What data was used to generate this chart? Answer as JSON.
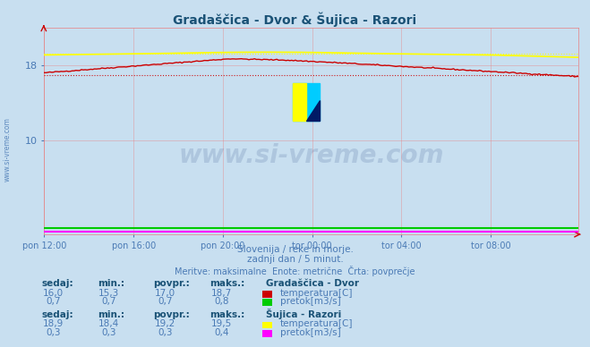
{
  "title": "Gradaščica - Dvor & Šujica - Razori",
  "title_color": "#1a5276",
  "bg_color": "#c8dff0",
  "plot_bg_color": "#c8dff0",
  "xlabel_texts": [
    "pon 12:00",
    "pon 16:00",
    "pon 20:00",
    "tor 00:00",
    "tor 04:00",
    "tor 08:00"
  ],
  "ylim_min": 0,
  "ylim_max": 22,
  "grid_color": "#e88080",
  "axis_label_color": "#4a7ab5",
  "subtitle1": "Slovenija / reke in morje.",
  "subtitle2": "zadnji dan / 5 minut.",
  "subtitle3": "Meritve: maksimalne  Enote: metrične  Črta: povprečje",
  "subtitle_color": "#4a7ab5",
  "watermark": "www.si-vreme.com",
  "watermark_color": "#1a3a7c",
  "watermark_alpha": 0.15,
  "left_label": "www.si-vreme.com",
  "left_label_color": "#4a7ab5",
  "color_grad_temp": "#cc0000",
  "color_suj_temp": "#ffff00",
  "color_grad_flow": "#00cc00",
  "color_suj_flow": "#ff00ff",
  "avg_grad_temp": 17.0,
  "avg_suj_temp": 19.2,
  "table_color": "#4a7ab5",
  "table_bold_color": "#1a5276",
  "station1_name": "Gradaščica - Dvor",
  "station2_name": "Šujica - Razori",
  "s1_sedaj": "16,0",
  "s1_min": "15,3",
  "s1_povpr": "17,0",
  "s1_maks": "18,7",
  "s1_sedaj2": "0,7",
  "s1_min2": "0,7",
  "s1_povpr2": "0,7",
  "s1_maks2": "0,8",
  "s2_sedaj": "18,9",
  "s2_min": "18,4",
  "s2_povpr": "19,2",
  "s2_maks": "19,5",
  "s2_sedaj2": "0,3",
  "s2_min2": "0,3",
  "s2_povpr2": "0,3",
  "s2_maks2": "0,4"
}
